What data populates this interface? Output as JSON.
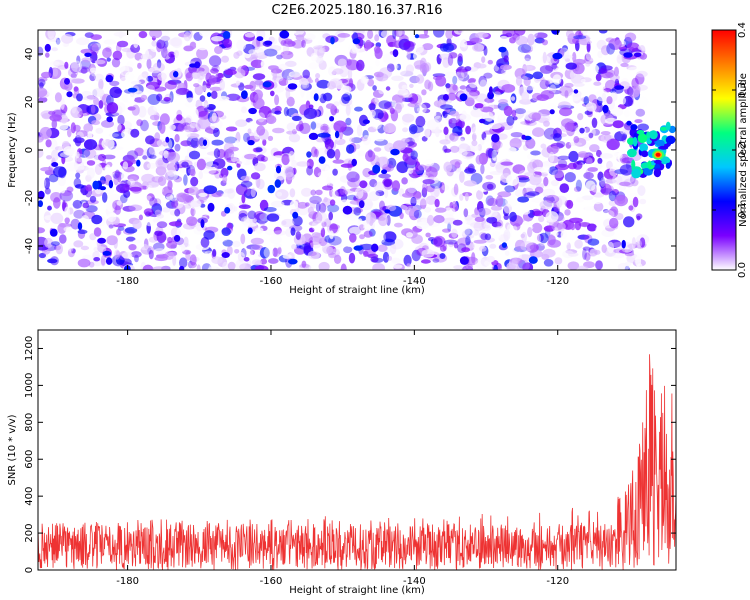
{
  "title": "C2E6.2025.180.16.37.R16",
  "chart_data": [
    {
      "type": "heatmap",
      "xlabel": "Height of straight line (km)",
      "ylabel": "Frequency (Hz)",
      "xlim": [
        -192.5,
        -103.5
      ],
      "ylim": [
        -50,
        50
      ],
      "x_ticks": [
        -180,
        -160,
        -140,
        -120
      ],
      "y_ticks": [
        -40,
        -20,
        0,
        20,
        40
      ],
      "colorbar": {
        "label": "Normalized spectral amplitude",
        "range": [
          0,
          0.4
        ],
        "ticks": [
          "0.0",
          "0.1",
          "0.2",
          "0.3",
          "0.4"
        ],
        "colors": [
          "#ffffff",
          "#7a00ff",
          "#0000ff",
          "#00c8ff",
          "#00ff80",
          "#ffff00",
          "#ff7f00",
          "#ff0000"
        ]
      },
      "signal": {
        "x_range": [
          -110,
          -104
        ],
        "y_range": [
          -10,
          10
        ],
        "peak_value": 0.4,
        "peak_x": -106,
        "peak_y": -2
      },
      "data_extent_x": [
        -192.5,
        -108
      ],
      "background_level": 0.05
    },
    {
      "type": "line",
      "xlabel": "Height of straight line (km)",
      "ylabel": "SNR (10 * v/v)",
      "xlim": [
        -192.5,
        -103.5
      ],
      "ylim": [
        0,
        1300
      ],
      "x_ticks": [
        -180,
        -160,
        -140,
        -120
      ],
      "y_ticks": [
        0,
        200,
        400,
        600,
        800,
        1000,
        1200
      ],
      "series": [
        {
          "color": "#ee3333",
          "noise_band": [
            0,
            250
          ],
          "noise_mean": 110,
          "rise_start_x": -112,
          "x": [
            -192.5,
            -180,
            -160,
            -140,
            -120,
            -112,
            -110,
            -108,
            -107,
            -106,
            -105,
            -104,
            -103.5
          ],
          "y_max": [
            250,
            270,
            300,
            280,
            330,
            380,
            480,
            850,
            1300,
            1050,
            1000,
            1050,
            900
          ]
        }
      ]
    }
  ]
}
